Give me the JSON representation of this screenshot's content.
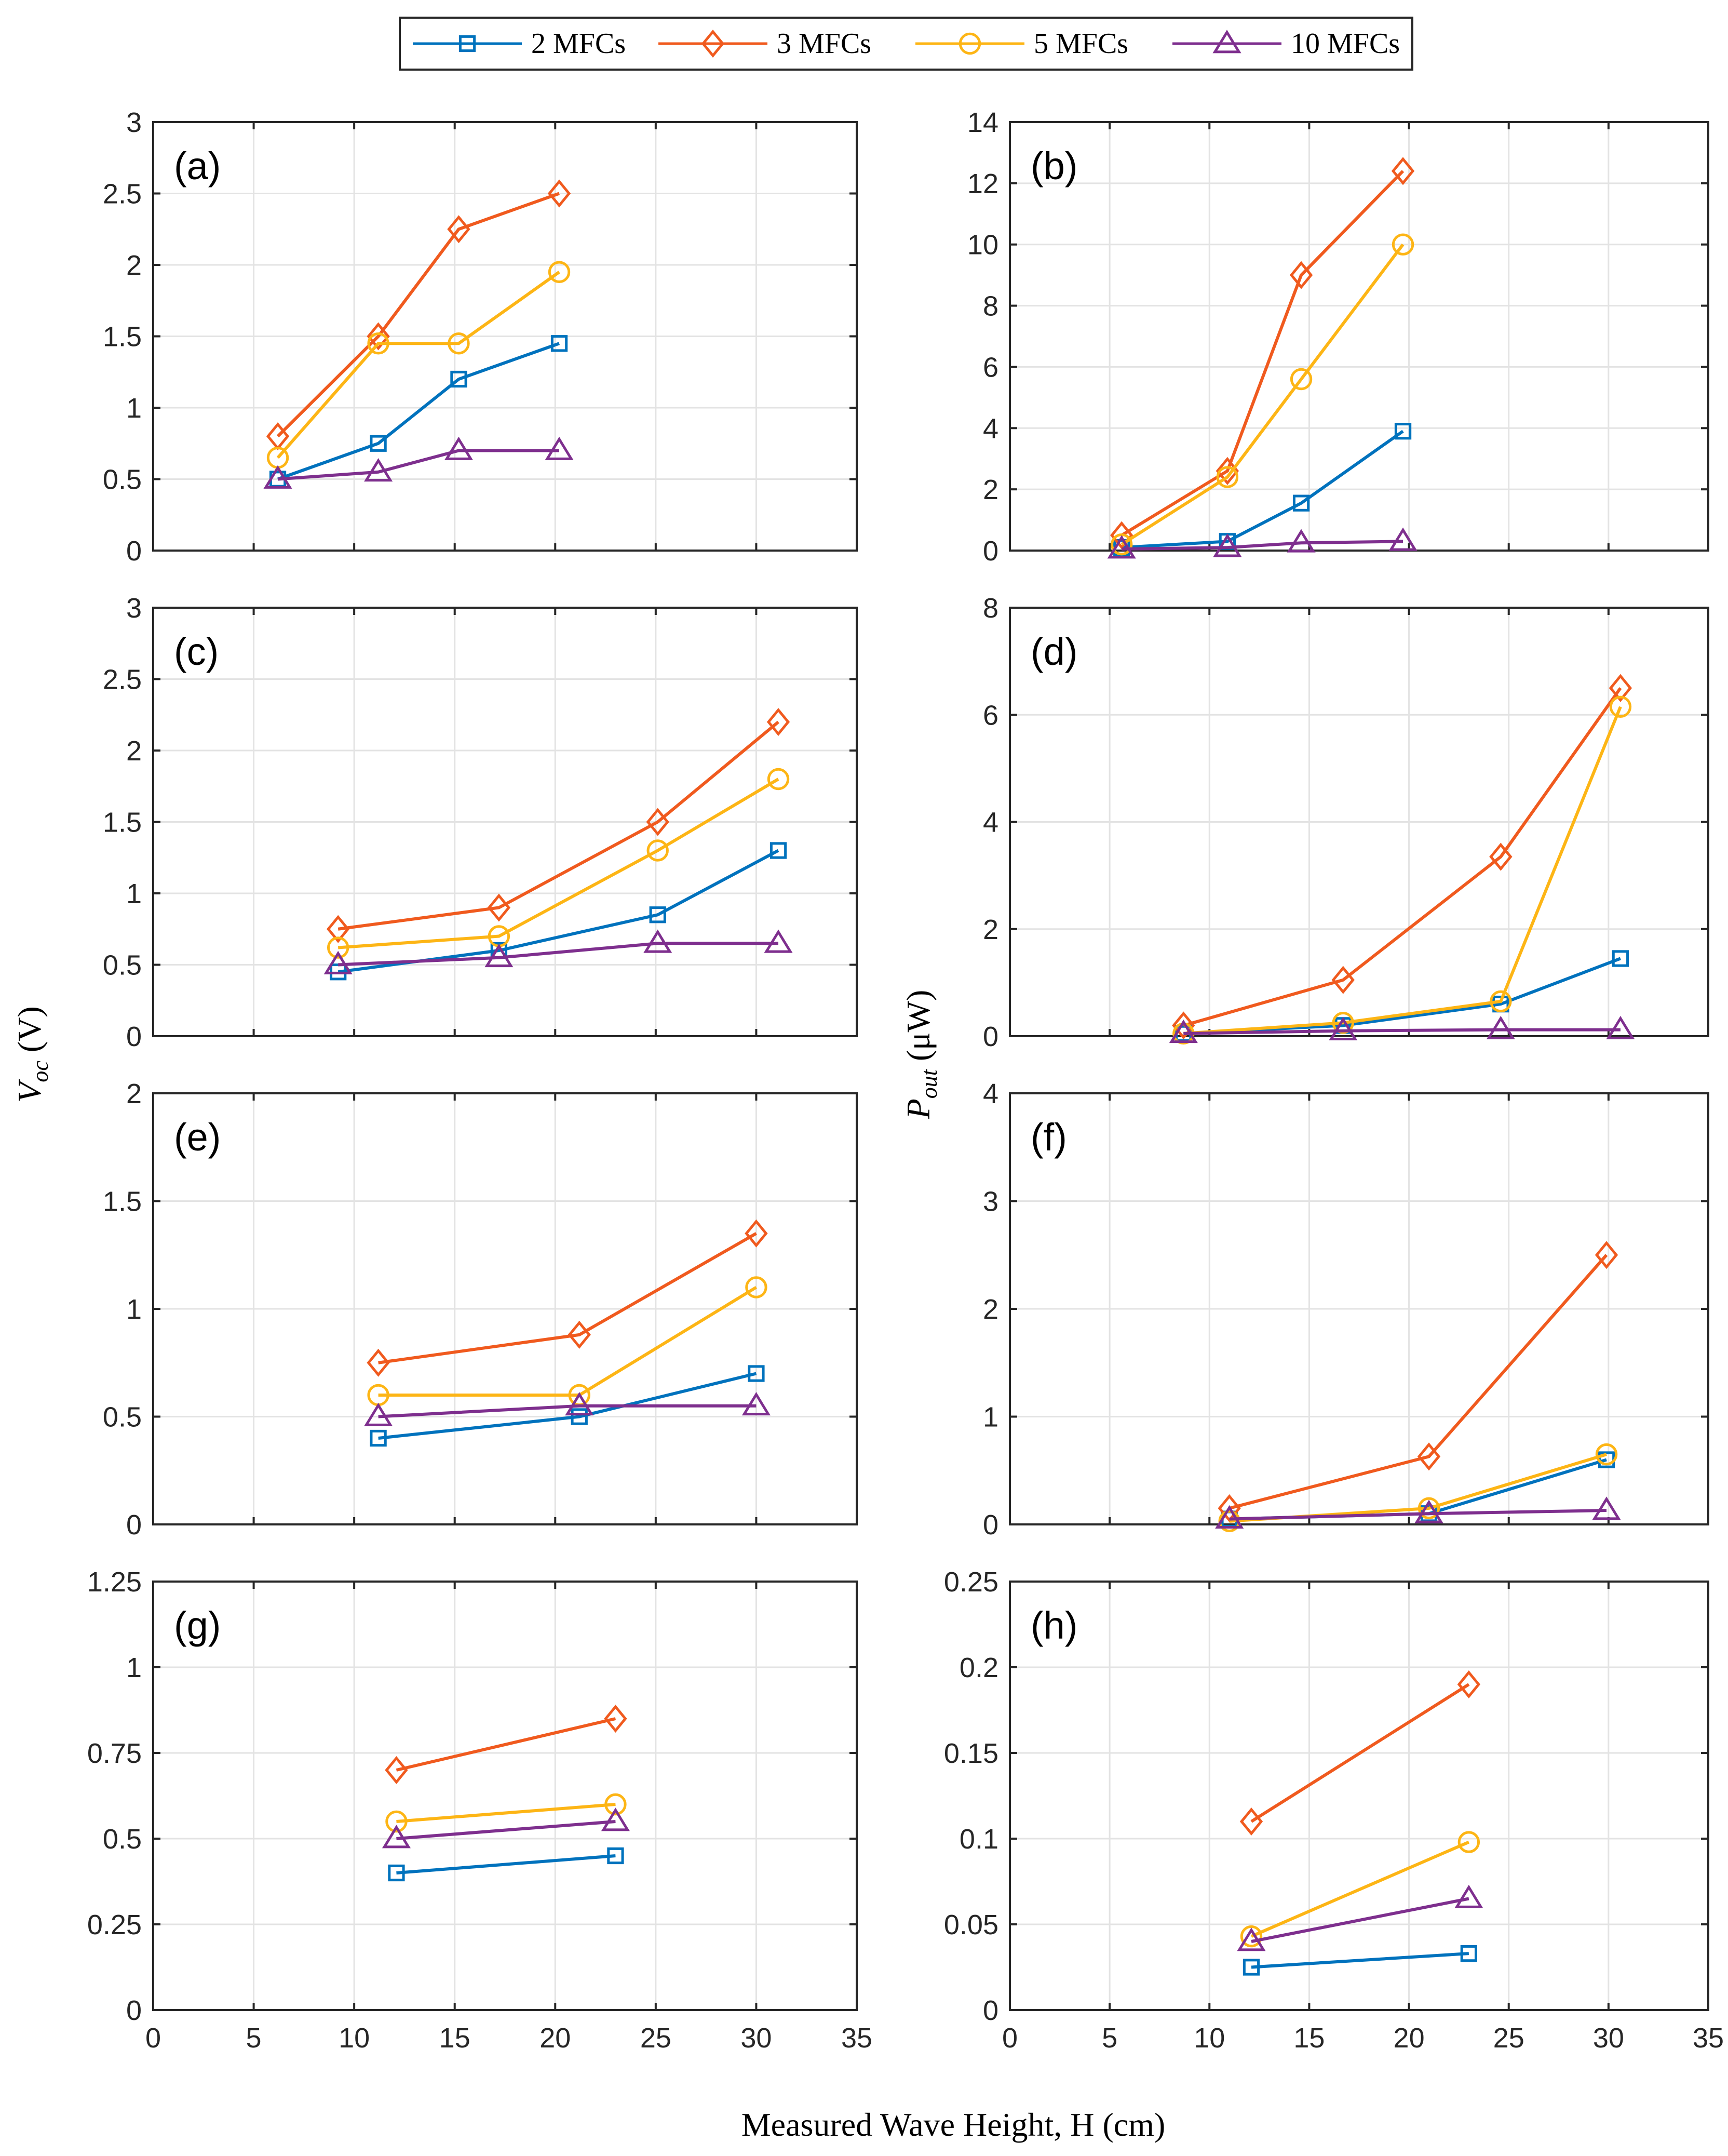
{
  "legend": {
    "entries": [
      {
        "name": "2 MFCs",
        "color": "#0072bd",
        "marker": "square"
      },
      {
        "name": "3 MFCs",
        "color": "#f05a1e",
        "marker": "diamond"
      },
      {
        "name": "5 MFCs",
        "color": "#fdb515",
        "marker": "circle"
      },
      {
        "name": "10 MFCs",
        "color": "#7e2f8e",
        "marker": "triangle"
      }
    ]
  },
  "labels": {
    "ylabel_left_main": "V",
    "ylabel_left_sub": "oc",
    "ylabel_left_unit": " (V)",
    "ylabel_right_main": "P",
    "ylabel_right_sub": "out",
    "ylabel_right_unit": " (μW)",
    "xlabel": "Measured Wave Height, H (cm)"
  },
  "chart_data": [
    {
      "panel": "(a)",
      "type": "line",
      "xlim": [
        0,
        35
      ],
      "ylim": [
        0,
        3
      ],
      "yticks": [
        "0",
        "0.5",
        "1",
        "1.5",
        "2",
        "2.5",
        "3"
      ],
      "yvals": [
        0,
        0.5,
        1,
        1.5,
        2,
        2.5,
        3
      ],
      "series": [
        {
          "name": "2 MFCs",
          "x": [
            6.2,
            11.2,
            15.2,
            20.2
          ],
          "y": [
            0.5,
            0.75,
            1.2,
            1.45
          ]
        },
        {
          "name": "3 MFCs",
          "x": [
            6.2,
            11.2,
            15.2,
            20.2
          ],
          "y": [
            0.8,
            1.5,
            2.25,
            2.5
          ]
        },
        {
          "name": "5 MFCs",
          "x": [
            6.2,
            11.2,
            15.2,
            20.2
          ],
          "y": [
            0.65,
            1.45,
            1.45,
            1.95
          ]
        },
        {
          "name": "10 MFCs",
          "x": [
            6.2,
            11.2,
            15.2,
            20.2
          ],
          "y": [
            0.5,
            0.55,
            0.7,
            0.7
          ]
        }
      ]
    },
    {
      "panel": "(b)",
      "type": "line",
      "xlim": [
        0,
        35
      ],
      "ylim": [
        0,
        14
      ],
      "yticks": [
        "0",
        "2",
        "4",
        "6",
        "8",
        "10",
        "12",
        "14"
      ],
      "yvals": [
        0,
        2,
        4,
        6,
        8,
        10,
        12,
        14
      ],
      "series": [
        {
          "name": "2 MFCs",
          "x": [
            5.6,
            10.9,
            14.6,
            19.7
          ],
          "y": [
            0.1,
            0.3,
            1.55,
            3.9
          ]
        },
        {
          "name": "3 MFCs",
          "x": [
            5.6,
            10.9,
            14.6,
            19.7
          ],
          "y": [
            0.5,
            2.6,
            9.0,
            12.4
          ]
        },
        {
          "name": "5 MFCs",
          "x": [
            5.6,
            10.9,
            14.6,
            19.7
          ],
          "y": [
            0.2,
            2.4,
            5.6,
            10.0
          ]
        },
        {
          "name": "10 MFCs",
          "x": [
            5.6,
            10.9,
            14.6,
            19.7
          ],
          "y": [
            0.05,
            0.1,
            0.25,
            0.3
          ]
        }
      ]
    },
    {
      "panel": "(c)",
      "type": "line",
      "xlim": [
        0,
        35
      ],
      "ylim": [
        0,
        3
      ],
      "yticks": [
        "0",
        "0.5",
        "1",
        "1.5",
        "2",
        "2.5",
        "3"
      ],
      "yvals": [
        0,
        0.5,
        1,
        1.5,
        2,
        2.5,
        3
      ],
      "series": [
        {
          "name": "2 MFCs",
          "x": [
            9.2,
            17.2,
            25.1,
            31.1
          ],
          "y": [
            0.45,
            0.6,
            0.85,
            1.3
          ]
        },
        {
          "name": "3 MFCs",
          "x": [
            9.2,
            17.2,
            25.1,
            31.1
          ],
          "y": [
            0.75,
            0.9,
            1.5,
            2.2
          ]
        },
        {
          "name": "5 MFCs",
          "x": [
            9.2,
            17.2,
            25.1,
            31.1
          ],
          "y": [
            0.62,
            0.7,
            1.3,
            1.8
          ]
        },
        {
          "name": "10 MFCs",
          "x": [
            9.2,
            17.2,
            25.1,
            31.1
          ],
          "y": [
            0.5,
            0.55,
            0.65,
            0.65
          ]
        }
      ]
    },
    {
      "panel": "(d)",
      "type": "line",
      "xlim": [
        0,
        35
      ],
      "ylim": [
        0,
        8
      ],
      "yticks": [
        "0",
        "2",
        "4",
        "6",
        "8"
      ],
      "yvals": [
        0,
        2,
        4,
        6,
        8
      ],
      "series": [
        {
          "name": "2 MFCs",
          "x": [
            8.7,
            16.7,
            24.6,
            30.6
          ],
          "y": [
            0.05,
            0.2,
            0.6,
            1.45
          ]
        },
        {
          "name": "3 MFCs",
          "x": [
            8.7,
            16.7,
            24.6,
            30.6
          ],
          "y": [
            0.2,
            1.05,
            3.35,
            6.5
          ]
        },
        {
          "name": "5 MFCs",
          "x": [
            8.7,
            16.7,
            24.6,
            30.6
          ],
          "y": [
            0.05,
            0.25,
            0.65,
            6.15
          ]
        },
        {
          "name": "10 MFCs",
          "x": [
            8.7,
            16.7,
            24.6,
            30.6
          ],
          "y": [
            0.05,
            0.1,
            0.12,
            0.12
          ]
        }
      ]
    },
    {
      "panel": "(e)",
      "type": "line",
      "xlim": [
        0,
        35
      ],
      "ylim": [
        0,
        2
      ],
      "yticks": [
        "0",
        "0.5",
        "1",
        "1.5",
        "2"
      ],
      "yvals": [
        0,
        0.5,
        1,
        1.5,
        2
      ],
      "series": [
        {
          "name": "2 MFCs",
          "x": [
            11.2,
            21.2,
            30.0
          ],
          "y": [
            0.4,
            0.5,
            0.7
          ]
        },
        {
          "name": "3 MFCs",
          "x": [
            11.2,
            21.2,
            30.0
          ],
          "y": [
            0.75,
            0.88,
            1.35
          ]
        },
        {
          "name": "5 MFCs",
          "x": [
            11.2,
            21.2,
            30.0
          ],
          "y": [
            0.6,
            0.6,
            1.1
          ]
        },
        {
          "name": "10 MFCs",
          "x": [
            11.2,
            21.2,
            30.0
          ],
          "y": [
            0.5,
            0.55,
            0.55
          ]
        }
      ]
    },
    {
      "panel": "(f)",
      "type": "line",
      "xlim": [
        0,
        35
      ],
      "ylim": [
        0,
        4
      ],
      "yticks": [
        "0",
        "1",
        "2",
        "3",
        "4"
      ],
      "yvals": [
        0,
        1,
        2,
        3,
        4
      ],
      "series": [
        {
          "name": "2 MFCs",
          "x": [
            11.0,
            21.0,
            29.9
          ],
          "y": [
            0.05,
            0.1,
            0.6
          ]
        },
        {
          "name": "3 MFCs",
          "x": [
            11.0,
            21.0,
            29.9
          ],
          "y": [
            0.15,
            0.63,
            2.5
          ]
        },
        {
          "name": "5 MFCs",
          "x": [
            11.0,
            21.0,
            29.9
          ],
          "y": [
            0.03,
            0.15,
            0.65
          ]
        },
        {
          "name": "10 MFCs",
          "x": [
            11.0,
            21.0,
            29.9
          ],
          "y": [
            0.05,
            0.1,
            0.13
          ]
        }
      ]
    },
    {
      "panel": "(g)",
      "type": "line",
      "xlim": [
        0,
        35
      ],
      "ylim": [
        0,
        1.25
      ],
      "yticks": [
        "0",
        "0.25",
        "0.5",
        "0.75",
        "1",
        "1.25"
      ],
      "yvals": [
        0,
        0.25,
        0.5,
        0.75,
        1,
        1.25
      ],
      "xticks": [
        "0",
        "5",
        "10",
        "15",
        "20",
        "25",
        "30",
        "35"
      ],
      "series": [
        {
          "name": "2 MFCs",
          "x": [
            12.1,
            23.0
          ],
          "y": [
            0.4,
            0.45
          ]
        },
        {
          "name": "3 MFCs",
          "x": [
            12.1,
            23.0
          ],
          "y": [
            0.7,
            0.85
          ]
        },
        {
          "name": "5 MFCs",
          "x": [
            12.1,
            23.0
          ],
          "y": [
            0.55,
            0.6
          ]
        },
        {
          "name": "10 MFCs",
          "x": [
            12.1,
            23.0
          ],
          "y": [
            0.5,
            0.55
          ]
        }
      ]
    },
    {
      "panel": "(h)",
      "type": "line",
      "xlim": [
        0,
        35
      ],
      "ylim": [
        0,
        0.25
      ],
      "yticks": [
        "0",
        "0.05",
        "0.1",
        "0.15",
        "0.2",
        "0.25"
      ],
      "yvals": [
        0,
        0.05,
        0.1,
        0.15,
        0.2,
        0.25
      ],
      "xticks": [
        "0",
        "5",
        "10",
        "15",
        "20",
        "25",
        "30",
        "35"
      ],
      "series": [
        {
          "name": "2 MFCs",
          "x": [
            12.1,
            23.0
          ],
          "y": [
            0.025,
            0.033
          ]
        },
        {
          "name": "3 MFCs",
          "x": [
            12.1,
            23.0
          ],
          "y": [
            0.11,
            0.19
          ]
        },
        {
          "name": "5 MFCs",
          "x": [
            12.1,
            23.0
          ],
          "y": [
            0.043,
            0.098
          ]
        },
        {
          "name": "10 MFCs",
          "x": [
            12.1,
            23.0
          ],
          "y": [
            0.04,
            0.065
          ]
        }
      ]
    }
  ]
}
